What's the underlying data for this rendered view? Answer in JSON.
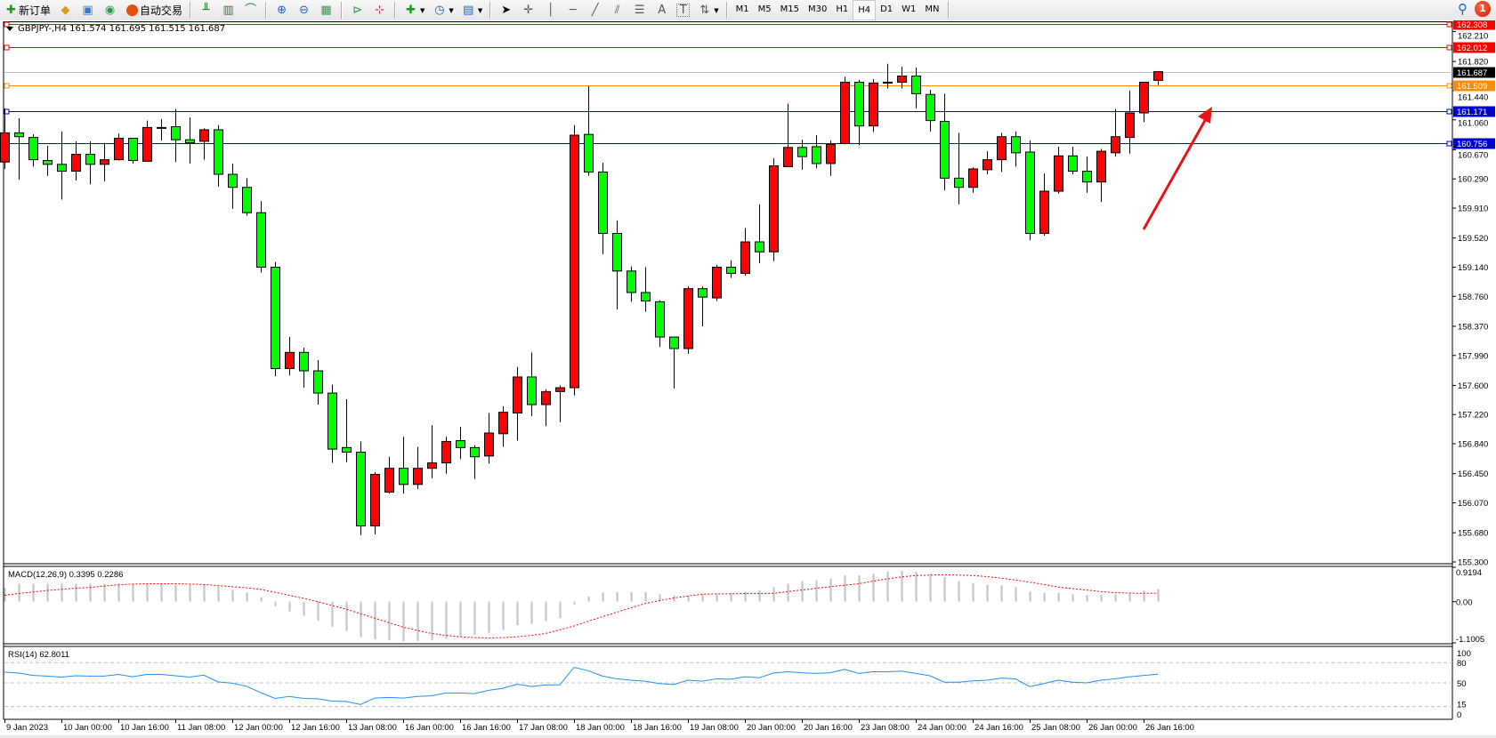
{
  "toolbar": {
    "new_order_label": "新订单",
    "auto_trading_label": "自动交易",
    "timeframes": [
      "M1",
      "M5",
      "M15",
      "M30",
      "H1",
      "H4",
      "D1",
      "W1",
      "MN"
    ],
    "active_timeframe": "H4",
    "notification_count": "1",
    "icons": [
      "new-order-icon",
      "gold-icon",
      "market-watch-icon",
      "signals-icon",
      "auto-trading-icon",
      "bar-chart-icon",
      "candlestick-icon",
      "line-chart-icon",
      "zoom-in-icon",
      "zoom-out-icon",
      "tile-windows-icon",
      "chart-shift-icon",
      "auto-scroll-icon",
      "indicators-icon",
      "periods-clock-icon",
      "templates-icon",
      "cursor-icon",
      "crosshair-icon",
      "vertical-line-icon",
      "horizontal-line-icon",
      "trendline-icon",
      "equidistant-channel-icon",
      "fibonacci-icon",
      "text-icon",
      "text-label-icon",
      "arrows-icon",
      "search-icon",
      "notification-icon"
    ]
  },
  "chart": {
    "title": "GBPJPY-,H4  161.574 161.695 161.515 161.687",
    "bull_color": "#ff0000",
    "bear_color": "#00ff00",
    "price_ticks": [
      "162.210",
      "161.820",
      "161.440",
      "161.060",
      "160.670",
      "160.290",
      "159.910",
      "159.520",
      "159.140",
      "158.760",
      "158.370",
      "157.990",
      "157.600",
      "157.220",
      "156.840",
      "156.450",
      "156.070",
      "155.680",
      "155.300"
    ],
    "price_range": [
      155.3,
      162.308
    ],
    "levels": [
      {
        "price": 162.308,
        "label": "162.308",
        "color": "#ff0000",
        "label_bg": "#ff0000"
      },
      {
        "price": 162.012,
        "label": "162.012",
        "color": "#ff0000",
        "label_bg": "#ff0000"
      },
      {
        "price": 161.687,
        "label": "161.687",
        "color": "#c0c0c0",
        "label_bg": "#000000"
      },
      {
        "price": 161.509,
        "label": "161.509",
        "color": "#ff8c00",
        "label_bg": "#ff8c00"
      },
      {
        "price": 161.171,
        "label": "161.171",
        "color": "#0000cd",
        "label_bg": "#0000cd"
      },
      {
        "price": 160.756,
        "label": "160.756",
        "color": "#0000cd",
        "label_bg": "#0000cd"
      }
    ],
    "arrow_color": "#e8121a",
    "candles": [
      [
        160.51,
        161.21,
        160.42,
        160.89
      ],
      [
        160.89,
        161.08,
        160.28,
        160.84
      ],
      [
        160.83,
        160.87,
        160.45,
        160.54
      ],
      [
        160.53,
        160.72,
        160.33,
        160.48
      ],
      [
        160.48,
        160.91,
        160.02,
        160.39
      ],
      [
        160.39,
        160.78,
        160.27,
        160.61
      ],
      [
        160.61,
        160.78,
        160.22,
        160.48
      ],
      [
        160.48,
        160.76,
        160.26,
        160.54
      ],
      [
        160.54,
        160.88,
        160.53,
        160.82
      ],
      [
        160.82,
        160.82,
        160.49,
        160.53
      ],
      [
        160.52,
        161.05,
        160.52,
        160.96
      ],
      [
        160.96,
        161.07,
        160.79,
        160.96
      ],
      [
        160.97,
        161.2,
        160.51,
        160.8
      ],
      [
        160.8,
        161.09,
        160.49,
        160.76
      ],
      [
        160.78,
        160.95,
        160.54,
        160.93
      ],
      [
        160.93,
        160.99,
        160.19,
        160.35
      ],
      [
        160.35,
        160.49,
        159.9,
        160.18
      ],
      [
        160.18,
        160.3,
        159.81,
        159.85
      ],
      [
        159.85,
        160.0,
        159.07,
        159.14
      ],
      [
        159.14,
        159.21,
        157.72,
        157.82
      ],
      [
        157.82,
        158.23,
        157.73,
        158.03
      ],
      [
        158.03,
        158.09,
        157.57,
        157.79
      ],
      [
        157.79,
        157.93,
        157.35,
        157.5
      ],
      [
        157.5,
        157.61,
        156.59,
        156.77
      ],
      [
        156.79,
        157.42,
        156.6,
        156.73
      ],
      [
        156.73,
        156.87,
        155.65,
        155.77
      ],
      [
        155.77,
        156.47,
        155.66,
        156.44
      ],
      [
        156.21,
        156.67,
        156.19,
        156.52
      ],
      [
        156.52,
        156.93,
        156.19,
        156.31
      ],
      [
        156.31,
        156.8,
        156.25,
        156.52
      ],
      [
        156.52,
        157.08,
        156.39,
        156.59
      ],
      [
        156.59,
        156.93,
        156.45,
        156.87
      ],
      [
        156.88,
        157.06,
        156.64,
        156.79
      ],
      [
        156.79,
        156.82,
        156.38,
        156.67
      ],
      [
        156.68,
        157.24,
        156.58,
        156.98
      ],
      [
        156.97,
        157.33,
        156.8,
        157.25
      ],
      [
        157.24,
        157.84,
        156.88,
        157.71
      ],
      [
        157.71,
        158.03,
        157.2,
        157.35
      ],
      [
        157.35,
        157.55,
        157.07,
        157.52
      ],
      [
        157.52,
        157.6,
        157.12,
        157.57
      ],
      [
        157.57,
        160.99,
        157.47,
        160.86
      ],
      [
        160.87,
        161.5,
        160.33,
        160.38
      ],
      [
        160.38,
        160.5,
        159.31,
        159.58
      ],
      [
        159.58,
        159.75,
        158.59,
        159.09
      ],
      [
        159.09,
        159.15,
        158.69,
        158.81
      ],
      [
        158.81,
        159.14,
        158.56,
        158.7
      ],
      [
        158.69,
        158.71,
        158.1,
        158.23
      ],
      [
        158.23,
        158.23,
        157.56,
        158.08
      ],
      [
        158.08,
        158.89,
        158.01,
        158.86
      ],
      [
        158.86,
        158.89,
        158.37,
        158.75
      ],
      [
        158.74,
        159.17,
        158.7,
        159.14
      ],
      [
        159.14,
        159.23,
        159.0,
        159.06
      ],
      [
        159.06,
        159.65,
        159.03,
        159.47
      ],
      [
        159.47,
        159.96,
        159.19,
        159.34
      ],
      [
        159.34,
        160.56,
        159.22,
        160.46
      ],
      [
        160.45,
        161.27,
        160.45,
        160.7
      ],
      [
        160.7,
        160.8,
        160.41,
        160.58
      ],
      [
        160.71,
        160.86,
        160.43,
        160.49
      ],
      [
        160.49,
        160.79,
        160.33,
        160.74
      ],
      [
        160.75,
        161.62,
        160.74,
        161.55
      ],
      [
        161.55,
        161.58,
        160.73,
        160.98
      ],
      [
        160.98,
        161.59,
        160.9,
        161.54
      ],
      [
        161.55,
        161.79,
        161.47,
        161.55
      ],
      [
        161.55,
        161.75,
        161.47,
        161.63
      ],
      [
        161.63,
        161.74,
        161.21,
        161.4
      ],
      [
        161.39,
        161.45,
        160.91,
        161.05
      ],
      [
        161.04,
        161.4,
        160.14,
        160.3
      ],
      [
        160.3,
        160.89,
        159.96,
        160.18
      ],
      [
        160.18,
        160.44,
        160.11,
        160.42
      ],
      [
        160.41,
        160.65,
        160.35,
        160.54
      ],
      [
        160.54,
        160.89,
        160.38,
        160.84
      ],
      [
        160.84,
        160.91,
        160.45,
        160.63
      ],
      [
        160.64,
        160.79,
        159.49,
        159.58
      ],
      [
        159.58,
        160.36,
        159.55,
        160.13
      ],
      [
        160.13,
        160.71,
        160.1,
        160.59
      ],
      [
        160.59,
        160.71,
        160.35,
        160.39
      ],
      [
        160.39,
        160.58,
        160.11,
        160.25
      ],
      [
        160.25,
        160.68,
        159.99,
        160.65
      ],
      [
        160.63,
        161.2,
        160.58,
        160.84
      ],
      [
        160.83,
        161.44,
        160.62,
        161.15
      ],
      [
        161.15,
        161.55,
        161.03,
        161.55
      ],
      [
        161.574,
        161.695,
        161.515,
        161.687
      ]
    ],
    "time_labels": [
      "9 Jan 2023",
      "10 Jan 00:00",
      "10 Jan 16:00",
      "11 Jan 08:00",
      "12 Jan 00:00",
      "12 Jan 16:00",
      "13 Jan 08:00",
      "16 Jan 00:00",
      "16 Jan 16:00",
      "17 Jan 08:00",
      "18 Jan 00:00",
      "18 Jan 16:00",
      "19 Jan 08:00",
      "20 Jan 00:00",
      "20 Jan 16:00",
      "23 Jan 08:00",
      "24 Jan 00:00",
      "24 Jan 16:00",
      "25 Jan 08:00",
      "26 Jan 00:00",
      "26 Jan 16:00"
    ]
  },
  "macd": {
    "title": "MACD(12,26,9) 0.3395 0.2286",
    "scale_labels": [
      "0.9194",
      "0.00",
      "-1.1005"
    ],
    "range": [
      -1.1005,
      0.9194
    ],
    "histogram_color": "#c0c0c0",
    "signal_color": "#ff0000",
    "histogram": [
      0.37,
      0.48,
      0.48,
      0.48,
      0.48,
      0.48,
      0.48,
      0.48,
      0.48,
      0.48,
      0.48,
      0.48,
      0.45,
      0.45,
      0.45,
      0.4,
      0.32,
      0.24,
      0.12,
      -0.12,
      -0.26,
      -0.38,
      -0.51,
      -0.67,
      -0.78,
      -0.95,
      -1.0,
      -1.03,
      -1.06,
      -1.05,
      -1.03,
      -0.99,
      -0.93,
      -0.88,
      -0.83,
      -0.76,
      -0.63,
      -0.59,
      -0.52,
      -0.44,
      -0.08,
      0.14,
      0.24,
      0.25,
      0.25,
      0.25,
      0.2,
      0.17,
      0.17,
      0.2,
      0.2,
      0.23,
      0.27,
      0.3,
      0.39,
      0.48,
      0.55,
      0.57,
      0.61,
      0.7,
      0.7,
      0.75,
      0.8,
      0.82,
      0.8,
      0.75,
      0.66,
      0.55,
      0.5,
      0.45,
      0.43,
      0.39,
      0.27,
      0.23,
      0.23,
      0.2,
      0.18,
      0.18,
      0.2,
      0.23,
      0.3,
      0.3395
    ],
    "signal": [
      0.17,
      0.22,
      0.26,
      0.3,
      0.33,
      0.36,
      0.38,
      0.42,
      0.45,
      0.47,
      0.48,
      0.48,
      0.48,
      0.47,
      0.46,
      0.43,
      0.4,
      0.37,
      0.33,
      0.25,
      0.17,
      0.09,
      0.0,
      -0.1,
      -0.2,
      -0.32,
      -0.44,
      -0.56,
      -0.68,
      -0.77,
      -0.85,
      -0.9,
      -0.94,
      -0.96,
      -0.97,
      -0.96,
      -0.94,
      -0.9,
      -0.85,
      -0.75,
      -0.65,
      -0.52,
      -0.4,
      -0.28,
      -0.16,
      -0.05,
      0.03,
      0.1,
      0.15,
      0.2,
      0.21,
      0.21,
      0.22,
      0.22,
      0.22,
      0.27,
      0.31,
      0.36,
      0.4,
      0.44,
      0.48,
      0.55,
      0.61,
      0.66,
      0.7,
      0.71,
      0.72,
      0.71,
      0.7,
      0.67,
      0.63,
      0.58,
      0.52,
      0.46,
      0.39,
      0.35,
      0.31,
      0.27,
      0.24,
      0.23,
      0.22,
      0.2286
    ]
  },
  "rsi": {
    "title": "RSI(14) 62.8011",
    "scale_labels": [
      "100",
      "80",
      "50",
      "15",
      "0"
    ],
    "levels": [
      80,
      50,
      15
    ],
    "line_color": "#1e90ff",
    "values": [
      66,
      64.5,
      61,
      60,
      58.5,
      60.5,
      60,
      60,
      62.5,
      59,
      62.5,
      62.5,
      60.5,
      58.5,
      61.5,
      51.5,
      49.5,
      45,
      35.5,
      27,
      30,
      27,
      26.5,
      23,
      22.5,
      18,
      27.5,
      28.5,
      27.5,
      30,
      31,
      35,
      35,
      34,
      39,
      42,
      48,
      44.5,
      47,
      47,
      73,
      68,
      60,
      56,
      54,
      52.5,
      49,
      47.5,
      54,
      52.5,
      56,
      55.5,
      59,
      57.5,
      64.5,
      66.5,
      65,
      64,
      65,
      70,
      64,
      66.5,
      66.5,
      67.5,
      64,
      60.5,
      51,
      51,
      53,
      54,
      57,
      56,
      44.5,
      49,
      54,
      51,
      50,
      54,
      56,
      59,
      61,
      62.8011
    ]
  }
}
